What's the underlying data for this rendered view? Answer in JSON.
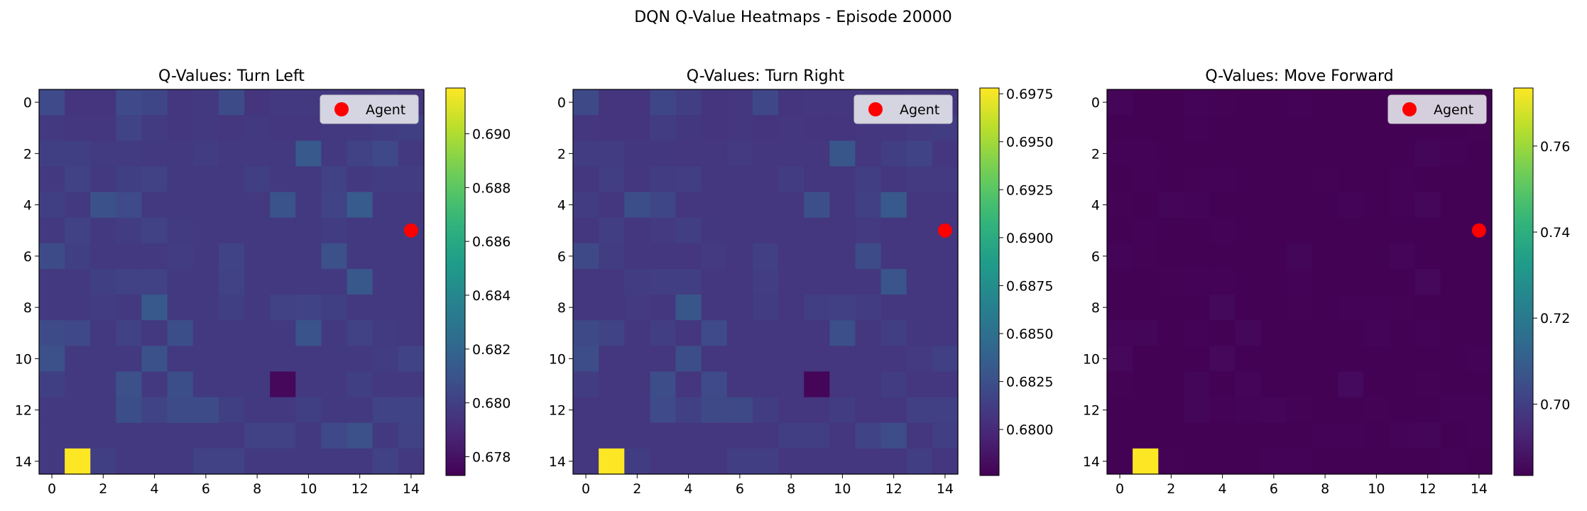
{
  "figure": {
    "title": "DQN Q-Value Heatmaps - Episode 20000"
  },
  "chart_data": [
    {
      "type": "heatmap",
      "title": "Q-Values: Turn Left",
      "grid_size": 15,
      "x_ticks": [
        0,
        2,
        4,
        6,
        8,
        10,
        12,
        14
      ],
      "y_ticks": [
        0,
        2,
        4,
        6,
        8,
        10,
        12,
        14
      ],
      "colormap": "viridis",
      "colorbar": {
        "min": 0.6773,
        "max": 0.6917,
        "ticks": [
          "0.678",
          "0.680",
          "0.682",
          "0.684",
          "0.686",
          "0.688",
          "0.690"
        ]
      },
      "legend": {
        "label": "Agent",
        "placement": "upper-right"
      },
      "agent": {
        "row": 5,
        "col": 14,
        "color": "#ff0000"
      },
      "values": [
        [
          0.6805,
          0.6795,
          0.6795,
          0.6805,
          0.6803,
          0.6796,
          0.6797,
          0.6806,
          0.6795,
          0.6797,
          0.6797,
          0.6797,
          0.6796,
          0.6797,
          0.6795
        ],
        [
          0.6797,
          0.6796,
          0.6796,
          0.6802,
          0.6798,
          0.6796,
          0.6797,
          0.6796,
          0.6797,
          0.6796,
          0.6796,
          0.6797,
          0.6797,
          0.6799,
          0.68
        ],
        [
          0.68,
          0.68,
          0.6798,
          0.6798,
          0.6797,
          0.6797,
          0.6799,
          0.6797,
          0.6797,
          0.6797,
          0.6813,
          0.6797,
          0.6801,
          0.6804,
          0.6797
        ],
        [
          0.6797,
          0.6801,
          0.6797,
          0.68,
          0.6801,
          0.6797,
          0.6797,
          0.6797,
          0.68,
          0.6797,
          0.6797,
          0.6801,
          0.6797,
          0.6799,
          0.6799
        ],
        [
          0.68,
          0.6797,
          0.6809,
          0.6805,
          0.6797,
          0.6797,
          0.6797,
          0.6797,
          0.6797,
          0.681,
          0.6797,
          0.6802,
          0.6814,
          0.6797,
          0.6797
        ],
        [
          0.6797,
          0.6801,
          0.6797,
          0.6799,
          0.6801,
          0.6798,
          0.6797,
          0.6797,
          0.6797,
          0.6797,
          0.6797,
          0.6799,
          0.6797,
          0.6797,
          0.6797
        ],
        [
          0.6806,
          0.68,
          0.6797,
          0.6797,
          0.6797,
          0.6799,
          0.6797,
          0.6802,
          0.6797,
          0.6797,
          0.6797,
          0.6808,
          0.6797,
          0.6797,
          0.6797
        ],
        [
          0.6797,
          0.6797,
          0.68,
          0.6801,
          0.6801,
          0.6797,
          0.6797,
          0.6801,
          0.6797,
          0.6797,
          0.6797,
          0.6797,
          0.6812,
          0.6797,
          0.6797
        ],
        [
          0.6797,
          0.6797,
          0.6799,
          0.6797,
          0.6813,
          0.6797,
          0.6797,
          0.68,
          0.6797,
          0.6801,
          0.6802,
          0.68,
          0.6797,
          0.6797,
          0.6797
        ],
        [
          0.6806,
          0.6804,
          0.6797,
          0.6801,
          0.6797,
          0.6807,
          0.6797,
          0.6797,
          0.6797,
          0.6797,
          0.681,
          0.6797,
          0.6801,
          0.6798,
          0.6797
        ],
        [
          0.6808,
          0.6797,
          0.6797,
          0.6797,
          0.6809,
          0.6797,
          0.6797,
          0.6797,
          0.6797,
          0.6797,
          0.6797,
          0.6797,
          0.6797,
          0.6799,
          0.6802
        ],
        [
          0.68,
          0.6797,
          0.6797,
          0.6808,
          0.6797,
          0.6807,
          0.6797,
          0.6797,
          0.6797,
          0.6776,
          0.6797,
          0.6797,
          0.68,
          0.6797,
          0.6797
        ],
        [
          0.6797,
          0.6797,
          0.6797,
          0.6807,
          0.6802,
          0.6806,
          0.6806,
          0.68,
          0.6797,
          0.6797,
          0.68,
          0.6797,
          0.6797,
          0.6802,
          0.6802
        ],
        [
          0.6797,
          0.6797,
          0.6797,
          0.6797,
          0.6797,
          0.6797,
          0.6797,
          0.6797,
          0.6801,
          0.6801,
          0.6797,
          0.6804,
          0.6808,
          0.6797,
          0.6801
        ],
        [
          0.6797,
          0.6917,
          0.68,
          0.6797,
          0.6797,
          0.6797,
          0.6801,
          0.6801,
          0.6797,
          0.6797,
          0.6797,
          0.6797,
          0.6797,
          0.6801,
          0.6797
        ]
      ]
    },
    {
      "type": "heatmap",
      "title": "Q-Values: Turn Right",
      "grid_size": 15,
      "x_ticks": [
        0,
        2,
        4,
        6,
        8,
        10,
        12,
        14
      ],
      "y_ticks": [
        0,
        2,
        4,
        6,
        8,
        10,
        12,
        14
      ],
      "colormap": "viridis",
      "colorbar": {
        "min": 0.6776,
        "max": 0.6978,
        "ticks": [
          "0.6800",
          "0.6825",
          "0.6850",
          "0.6875",
          "0.6900",
          "0.6925",
          "0.6950",
          "0.6975"
        ]
      },
      "legend": {
        "label": "Agent",
        "placement": "upper-right"
      },
      "agent": {
        "row": 5,
        "col": 14,
        "color": "#ff0000"
      },
      "values": [
        [
          0.682,
          0.6807,
          0.6807,
          0.6818,
          0.6813,
          0.6807,
          0.6808,
          0.6819,
          0.6807,
          0.6808,
          0.6808,
          0.6808,
          0.6807,
          0.6808,
          0.6807
        ],
        [
          0.6808,
          0.6807,
          0.6807,
          0.6812,
          0.6809,
          0.6807,
          0.6808,
          0.6807,
          0.6808,
          0.6807,
          0.6807,
          0.6808,
          0.6808,
          0.681,
          0.6812
        ],
        [
          0.6812,
          0.6812,
          0.6809,
          0.6809,
          0.6808,
          0.6808,
          0.681,
          0.6808,
          0.6808,
          0.6808,
          0.683,
          0.6808,
          0.6813,
          0.6817,
          0.6808
        ],
        [
          0.6808,
          0.6813,
          0.6808,
          0.6812,
          0.6813,
          0.6808,
          0.6808,
          0.6808,
          0.6812,
          0.6808,
          0.6808,
          0.6813,
          0.6808,
          0.681,
          0.681
        ],
        [
          0.6812,
          0.6808,
          0.6824,
          0.6818,
          0.6808,
          0.6808,
          0.6808,
          0.6808,
          0.6808,
          0.6825,
          0.6808,
          0.6814,
          0.6832,
          0.6808,
          0.6808
        ],
        [
          0.6808,
          0.6813,
          0.6808,
          0.681,
          0.6813,
          0.6809,
          0.6808,
          0.6808,
          0.6808,
          0.6808,
          0.6808,
          0.681,
          0.6808,
          0.6808,
          0.6808
        ],
        [
          0.682,
          0.6812,
          0.6808,
          0.6808,
          0.6808,
          0.681,
          0.6808,
          0.6814,
          0.6808,
          0.6808,
          0.6808,
          0.6822,
          0.6808,
          0.6808,
          0.6808
        ],
        [
          0.6808,
          0.6808,
          0.6812,
          0.6813,
          0.6813,
          0.6808,
          0.6808,
          0.6813,
          0.6808,
          0.6808,
          0.6808,
          0.6808,
          0.6829,
          0.6808,
          0.6808
        ],
        [
          0.6808,
          0.6808,
          0.681,
          0.6808,
          0.683,
          0.6808,
          0.6808,
          0.6812,
          0.6808,
          0.6813,
          0.6814,
          0.6812,
          0.6808,
          0.6808,
          0.6808
        ],
        [
          0.682,
          0.6817,
          0.6808,
          0.6813,
          0.6808,
          0.6821,
          0.6808,
          0.6808,
          0.6808,
          0.6808,
          0.6825,
          0.6808,
          0.6813,
          0.6809,
          0.6808
        ],
        [
          0.6823,
          0.6808,
          0.6808,
          0.6808,
          0.6824,
          0.6808,
          0.6808,
          0.6808,
          0.6808,
          0.6808,
          0.6808,
          0.6808,
          0.6808,
          0.681,
          0.6814
        ],
        [
          0.6812,
          0.6808,
          0.6808,
          0.6823,
          0.6808,
          0.6821,
          0.6808,
          0.6808,
          0.6808,
          0.6779,
          0.6808,
          0.6808,
          0.6812,
          0.6808,
          0.6808
        ],
        [
          0.6808,
          0.6808,
          0.6808,
          0.6821,
          0.6814,
          0.682,
          0.682,
          0.6812,
          0.6808,
          0.6808,
          0.6812,
          0.6808,
          0.6808,
          0.6814,
          0.6814
        ],
        [
          0.6808,
          0.6808,
          0.6808,
          0.6808,
          0.6808,
          0.6808,
          0.6808,
          0.6808,
          0.6813,
          0.6813,
          0.6808,
          0.6817,
          0.6823,
          0.6808,
          0.6813
        ],
        [
          0.6808,
          0.6978,
          0.6812,
          0.6808,
          0.6808,
          0.6808,
          0.6813,
          0.6813,
          0.6808,
          0.6808,
          0.6808,
          0.6808,
          0.6808,
          0.6813,
          0.6808
        ]
      ]
    },
    {
      "type": "heatmap",
      "title": "Q-Values: Move Forward",
      "grid_size": 15,
      "x_ticks": [
        0,
        2,
        4,
        6,
        8,
        10,
        12,
        14
      ],
      "y_ticks": [
        0,
        2,
        4,
        6,
        8,
        10,
        12,
        14
      ],
      "colormap": "viridis",
      "colorbar": {
        "min": 0.6834,
        "max": 0.7735,
        "ticks": [
          "0.70",
          "0.72",
          "0.74",
          "0.76"
        ]
      },
      "legend": {
        "label": "Agent",
        "placement": "upper-right"
      },
      "agent": {
        "row": 5,
        "col": 14,
        "color": "#ff0000"
      },
      "values": [
        [
          0.6848,
          0.6836,
          0.6836,
          0.6842,
          0.6838,
          0.6836,
          0.6836,
          0.6839,
          0.6836,
          0.6836,
          0.6836,
          0.6836,
          0.6836,
          0.6836,
          0.6836
        ],
        [
          0.6836,
          0.6836,
          0.6836,
          0.684,
          0.6837,
          0.6836,
          0.6836,
          0.6836,
          0.6836,
          0.6836,
          0.6836,
          0.6836,
          0.6836,
          0.6837,
          0.6838
        ],
        [
          0.684,
          0.6839,
          0.6837,
          0.6837,
          0.6836,
          0.6836,
          0.6837,
          0.6836,
          0.6836,
          0.6836,
          0.6836,
          0.6836,
          0.6846,
          0.684,
          0.6836
        ],
        [
          0.6836,
          0.684,
          0.6836,
          0.6838,
          0.6839,
          0.6836,
          0.6836,
          0.6836,
          0.6838,
          0.6836,
          0.6836,
          0.6839,
          0.6836,
          0.6837,
          0.6837
        ],
        [
          0.6838,
          0.6836,
          0.6846,
          0.6841,
          0.6836,
          0.6836,
          0.6836,
          0.6836,
          0.6836,
          0.6844,
          0.6836,
          0.684,
          0.685,
          0.6836,
          0.6836
        ],
        [
          0.6836,
          0.6839,
          0.6836,
          0.6837,
          0.6839,
          0.6837,
          0.6836,
          0.6836,
          0.6836,
          0.6836,
          0.6836,
          0.6837,
          0.6836,
          0.6836,
          0.6836
        ],
        [
          0.6845,
          0.6838,
          0.6836,
          0.6836,
          0.6836,
          0.6837,
          0.6836,
          0.6846,
          0.6836,
          0.6836,
          0.6836,
          0.6848,
          0.6836,
          0.6836,
          0.6836
        ],
        [
          0.6836,
          0.6836,
          0.6838,
          0.6839,
          0.6839,
          0.6836,
          0.6836,
          0.6839,
          0.6836,
          0.6836,
          0.6836,
          0.6836,
          0.6852,
          0.6836,
          0.6836
        ],
        [
          0.6836,
          0.6836,
          0.6837,
          0.6836,
          0.6854,
          0.6836,
          0.6836,
          0.6838,
          0.6836,
          0.6839,
          0.684,
          0.6838,
          0.6836,
          0.6836,
          0.6836
        ],
        [
          0.6848,
          0.6846,
          0.6836,
          0.6839,
          0.6836,
          0.685,
          0.6836,
          0.6836,
          0.6836,
          0.6836,
          0.6844,
          0.6836,
          0.6839,
          0.6837,
          0.6836
        ],
        [
          0.6852,
          0.6836,
          0.6836,
          0.6836,
          0.6852,
          0.6836,
          0.6836,
          0.6836,
          0.6836,
          0.6836,
          0.6836,
          0.6836,
          0.6836,
          0.6837,
          0.684
        ],
        [
          0.6838,
          0.6836,
          0.6836,
          0.6846,
          0.6836,
          0.6848,
          0.6836,
          0.6836,
          0.6836,
          0.6858,
          0.6836,
          0.6836,
          0.6838,
          0.6836,
          0.6836
        ],
        [
          0.6836,
          0.6836,
          0.6836,
          0.6846,
          0.684,
          0.6845,
          0.6848,
          0.6838,
          0.6836,
          0.6836,
          0.6838,
          0.6836,
          0.6836,
          0.684,
          0.684
        ],
        [
          0.6836,
          0.6836,
          0.6836,
          0.6836,
          0.6836,
          0.6836,
          0.6836,
          0.6836,
          0.6839,
          0.6839,
          0.6836,
          0.6841,
          0.6846,
          0.6836,
          0.6839
        ],
        [
          0.6836,
          0.7735,
          0.6838,
          0.6836,
          0.6836,
          0.6836,
          0.6839,
          0.6839,
          0.6836,
          0.6836,
          0.6836,
          0.6836,
          0.6836,
          0.6839,
          0.6836
        ]
      ]
    }
  ]
}
